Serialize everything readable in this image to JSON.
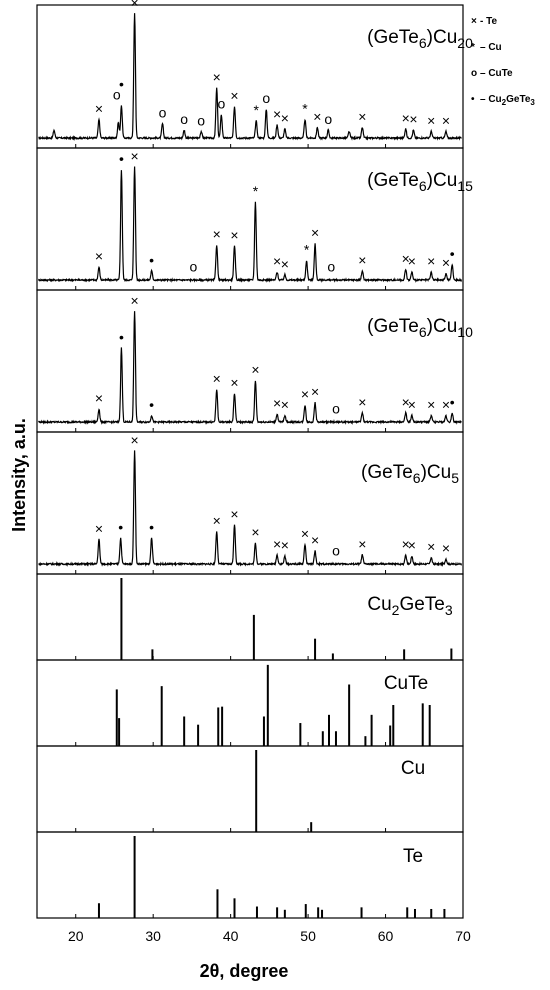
{
  "chart_data": {
    "type": "line",
    "xlabel": "2θ, degree",
    "ylabel": "Intensity, a.u.",
    "xlim": [
      15,
      70
    ],
    "xticks": [
      20,
      30,
      40,
      50,
      60,
      70
    ],
    "legend": {
      "placement": "top-right",
      "entries": [
        {
          "marker": "×",
          "label": "- Te"
        },
        {
          "marker": "*",
          "label": "– Cu"
        },
        {
          "marker": "o",
          "label": "– CuTe"
        },
        {
          "marker": "•",
          "label": "– Cu",
          "sub": "2",
          "label2": "GeTe",
          "sub2": "3"
        }
      ]
    },
    "xrd_panels": [
      {
        "label_main": "(GeTe",
        "label_sub1": "6",
        "label_mid": ")Cu",
        "label_sub2": "20",
        "peaks": [
          {
            "x": 17.2,
            "h": 0.06
          },
          {
            "x": 23.0,
            "h": 0.14
          },
          {
            "x": 25.5,
            "h": 0.12
          },
          {
            "x": 25.9,
            "h": 0.25
          },
          {
            "x": 27.6,
            "h": 0.95
          },
          {
            "x": 31.2,
            "h": 0.11
          },
          {
            "x": 34.0,
            "h": 0.06
          },
          {
            "x": 36.2,
            "h": 0.05
          },
          {
            "x": 38.2,
            "h": 0.38
          },
          {
            "x": 38.8,
            "h": 0.18
          },
          {
            "x": 40.5,
            "h": 0.24
          },
          {
            "x": 43.3,
            "h": 0.13
          },
          {
            "x": 44.6,
            "h": 0.22
          },
          {
            "x": 46.0,
            "h": 0.1
          },
          {
            "x": 47.0,
            "h": 0.07
          },
          {
            "x": 49.6,
            "h": 0.14
          },
          {
            "x": 51.2,
            "h": 0.08
          },
          {
            "x": 52.6,
            "h": 0.06
          },
          {
            "x": 55.3,
            "h": 0.05
          },
          {
            "x": 57.0,
            "h": 0.08
          },
          {
            "x": 62.6,
            "h": 0.07
          },
          {
            "x": 63.6,
            "h": 0.06
          },
          {
            "x": 65.9,
            "h": 0.05
          },
          {
            "x": 67.8,
            "h": 0.05
          }
        ],
        "markers": [
          {
            "x": 23.0,
            "h": 0.14,
            "m": "×"
          },
          {
            "x": 25.3,
            "h": 0.25,
            "m": "o"
          },
          {
            "x": 25.9,
            "h": 0.33,
            "m": "•"
          },
          {
            "x": 27.6,
            "h": 0.95,
            "m": "×"
          },
          {
            "x": 31.2,
            "h": 0.11,
            "m": "o"
          },
          {
            "x": 34.0,
            "h": 0.06,
            "m": "o"
          },
          {
            "x": 36.2,
            "h": 0.05,
            "m": "o"
          },
          {
            "x": 38.2,
            "h": 0.38,
            "m": "×"
          },
          {
            "x": 38.8,
            "h": 0.18,
            "m": "o"
          },
          {
            "x": 40.5,
            "h": 0.24,
            "m": "×"
          },
          {
            "x": 43.3,
            "h": 0.13,
            "m": "*"
          },
          {
            "x": 44.6,
            "h": 0.22,
            "m": "o"
          },
          {
            "x": 46.0,
            "h": 0.1,
            "m": "×"
          },
          {
            "x": 47.0,
            "h": 0.07,
            "m": "×"
          },
          {
            "x": 49.6,
            "h": 0.14,
            "m": "*"
          },
          {
            "x": 51.2,
            "h": 0.08,
            "m": "×"
          },
          {
            "x": 52.6,
            "h": 0.06,
            "m": "o"
          },
          {
            "x": 57.0,
            "h": 0.08,
            "m": "×"
          },
          {
            "x": 62.6,
            "h": 0.07,
            "m": "×"
          },
          {
            "x": 63.6,
            "h": 0.06,
            "m": "×"
          },
          {
            "x": 65.9,
            "h": 0.05,
            "m": "×"
          },
          {
            "x": 67.8,
            "h": 0.05,
            "m": "×"
          }
        ]
      },
      {
        "label_main": "(GeTe",
        "label_sub1": "6",
        "label_mid": ")Cu",
        "label_sub2": "15",
        "peaks": [
          {
            "x": 23.0,
            "h": 0.1
          },
          {
            "x": 25.9,
            "h": 0.85
          },
          {
            "x": 27.6,
            "h": 0.87
          },
          {
            "x": 29.8,
            "h": 0.07
          },
          {
            "x": 38.2,
            "h": 0.27
          },
          {
            "x": 40.5,
            "h": 0.26
          },
          {
            "x": 43.2,
            "h": 0.6
          },
          {
            "x": 46.0,
            "h": 0.06
          },
          {
            "x": 47.0,
            "h": 0.04
          },
          {
            "x": 49.8,
            "h": 0.15
          },
          {
            "x": 50.9,
            "h": 0.28
          },
          {
            "x": 57.0,
            "h": 0.07
          },
          {
            "x": 62.6,
            "h": 0.08
          },
          {
            "x": 63.4,
            "h": 0.06
          },
          {
            "x": 65.9,
            "h": 0.06
          },
          {
            "x": 67.8,
            "h": 0.05
          },
          {
            "x": 68.6,
            "h": 0.12
          }
        ],
        "markers": [
          {
            "x": 23.0,
            "h": 0.1,
            "m": "×"
          },
          {
            "x": 25.9,
            "h": 0.85,
            "m": "•"
          },
          {
            "x": 27.6,
            "h": 0.87,
            "m": "×"
          },
          {
            "x": 29.8,
            "h": 0.07,
            "m": "•"
          },
          {
            "x": 35.2,
            "h": 0.02,
            "m": "o"
          },
          {
            "x": 38.2,
            "h": 0.27,
            "m": "×"
          },
          {
            "x": 40.5,
            "h": 0.26,
            "m": "×"
          },
          {
            "x": 43.2,
            "h": 0.6,
            "m": "*"
          },
          {
            "x": 46.0,
            "h": 0.06,
            "m": "×"
          },
          {
            "x": 47.0,
            "h": 0.04,
            "m": "×"
          },
          {
            "x": 49.8,
            "h": 0.15,
            "m": "*"
          },
          {
            "x": 50.9,
            "h": 0.28,
            "m": "×"
          },
          {
            "x": 53.0,
            "h": 0.02,
            "m": "o"
          },
          {
            "x": 57.0,
            "h": 0.07,
            "m": "×"
          },
          {
            "x": 62.6,
            "h": 0.08,
            "m": "×"
          },
          {
            "x": 63.4,
            "h": 0.06,
            "m": "×"
          },
          {
            "x": 65.9,
            "h": 0.06,
            "m": "×"
          },
          {
            "x": 67.8,
            "h": 0.05,
            "m": "×"
          },
          {
            "x": 68.6,
            "h": 0.12,
            "m": "•"
          }
        ]
      },
      {
        "label_main": "(GeTe",
        "label_sub1": "6",
        "label_mid": ")Cu",
        "label_sub2": "10",
        "peaks": [
          {
            "x": 23.0,
            "h": 0.1
          },
          {
            "x": 25.9,
            "h": 0.57
          },
          {
            "x": 27.6,
            "h": 0.85
          },
          {
            "x": 29.8,
            "h": 0.05
          },
          {
            "x": 38.2,
            "h": 0.25
          },
          {
            "x": 40.5,
            "h": 0.22
          },
          {
            "x": 43.2,
            "h": 0.32
          },
          {
            "x": 46.0,
            "h": 0.06
          },
          {
            "x": 47.0,
            "h": 0.05
          },
          {
            "x": 49.6,
            "h": 0.13
          },
          {
            "x": 50.9,
            "h": 0.15
          },
          {
            "x": 57.0,
            "h": 0.07
          },
          {
            "x": 62.6,
            "h": 0.07
          },
          {
            "x": 63.4,
            "h": 0.05
          },
          {
            "x": 65.9,
            "h": 0.05
          },
          {
            "x": 67.8,
            "h": 0.05
          },
          {
            "x": 68.6,
            "h": 0.07
          }
        ],
        "markers": [
          {
            "x": 23.0,
            "h": 0.1,
            "m": "×"
          },
          {
            "x": 25.9,
            "h": 0.57,
            "m": "•"
          },
          {
            "x": 27.6,
            "h": 0.85,
            "m": "×"
          },
          {
            "x": 29.8,
            "h": 0.05,
            "m": "•"
          },
          {
            "x": 38.2,
            "h": 0.25,
            "m": "×"
          },
          {
            "x": 40.5,
            "h": 0.22,
            "m": "×"
          },
          {
            "x": 43.2,
            "h": 0.32,
            "m": "×"
          },
          {
            "x": 46.0,
            "h": 0.06,
            "m": "×"
          },
          {
            "x": 47.0,
            "h": 0.05,
            "m": "×"
          },
          {
            "x": 49.6,
            "h": 0.13,
            "m": "×"
          },
          {
            "x": 50.9,
            "h": 0.15,
            "m": "×"
          },
          {
            "x": 53.6,
            "h": 0.02,
            "m": "o"
          },
          {
            "x": 57.0,
            "h": 0.07,
            "m": "×"
          },
          {
            "x": 62.6,
            "h": 0.07,
            "m": "×"
          },
          {
            "x": 63.4,
            "h": 0.05,
            "m": "×"
          },
          {
            "x": 65.9,
            "h": 0.05,
            "m": "×"
          },
          {
            "x": 67.8,
            "h": 0.05,
            "m": "×"
          },
          {
            "x": 68.6,
            "h": 0.07,
            "m": "•"
          }
        ]
      },
      {
        "label_main": "(GeTe",
        "label_sub1": "6",
        "label_mid": ")Cu",
        "label_sub2": "5",
        "peaks": [
          {
            "x": 23.0,
            "h": 0.19
          },
          {
            "x": 25.8,
            "h": 0.2
          },
          {
            "x": 27.6,
            "h": 0.87
          },
          {
            "x": 29.8,
            "h": 0.2
          },
          {
            "x": 38.2,
            "h": 0.25
          },
          {
            "x": 40.5,
            "h": 0.3
          },
          {
            "x": 43.2,
            "h": 0.16
          },
          {
            "x": 46.0,
            "h": 0.07
          },
          {
            "x": 47.0,
            "h": 0.06
          },
          {
            "x": 49.6,
            "h": 0.15
          },
          {
            "x": 50.9,
            "h": 0.1
          },
          {
            "x": 57.0,
            "h": 0.07
          },
          {
            "x": 62.6,
            "h": 0.07
          },
          {
            "x": 63.4,
            "h": 0.06
          },
          {
            "x": 65.9,
            "h": 0.05
          },
          {
            "x": 67.8,
            "h": 0.04
          }
        ],
        "markers": [
          {
            "x": 23.0,
            "h": 0.19,
            "m": "×"
          },
          {
            "x": 25.8,
            "h": 0.2,
            "m": "•"
          },
          {
            "x": 27.6,
            "h": 0.87,
            "m": "×"
          },
          {
            "x": 29.8,
            "h": 0.2,
            "m": "•"
          },
          {
            "x": 38.2,
            "h": 0.25,
            "m": "×"
          },
          {
            "x": 40.5,
            "h": 0.3,
            "m": "×"
          },
          {
            "x": 43.2,
            "h": 0.16,
            "m": "×"
          },
          {
            "x": 46.0,
            "h": 0.07,
            "m": "×"
          },
          {
            "x": 47.0,
            "h": 0.06,
            "m": "×"
          },
          {
            "x": 49.6,
            "h": 0.15,
            "m": "×"
          },
          {
            "x": 50.9,
            "h": 0.1,
            "m": "×"
          },
          {
            "x": 53.6,
            "h": 0.02,
            "m": "o"
          },
          {
            "x": 57.0,
            "h": 0.07,
            "m": "×"
          },
          {
            "x": 62.6,
            "h": 0.07,
            "m": "×"
          },
          {
            "x": 63.4,
            "h": 0.06,
            "m": "×"
          },
          {
            "x": 65.9,
            "h": 0.05,
            "m": "×"
          },
          {
            "x": 67.8,
            "h": 0.04,
            "m": "×"
          }
        ]
      }
    ],
    "reference_panels": [
      {
        "label_parts": [
          {
            "t": "Cu"
          },
          {
            "t": "2",
            "sub": true
          },
          {
            "t": "GeTe"
          },
          {
            "t": "3",
            "sub": true
          }
        ],
        "lines": [
          {
            "x": 25.9,
            "h": 1.0
          },
          {
            "x": 29.9,
            "h": 0.13
          },
          {
            "x": 43.0,
            "h": 0.55
          },
          {
            "x": 50.9,
            "h": 0.26
          },
          {
            "x": 53.2,
            "h": 0.08
          },
          {
            "x": 62.4,
            "h": 0.13
          },
          {
            "x": 68.5,
            "h": 0.14
          }
        ]
      },
      {
        "label_parts": [
          {
            "t": "CuTe"
          }
        ],
        "lines": [
          {
            "x": 25.3,
            "h": 0.69
          },
          {
            "x": 25.6,
            "h": 0.34
          },
          {
            "x": 31.1,
            "h": 0.73
          },
          {
            "x": 34.0,
            "h": 0.36
          },
          {
            "x": 35.8,
            "h": 0.26
          },
          {
            "x": 38.4,
            "h": 0.47
          },
          {
            "x": 38.9,
            "h": 0.48
          },
          {
            "x": 44.3,
            "h": 0.36
          },
          {
            "x": 44.8,
            "h": 0.99
          },
          {
            "x": 49.0,
            "h": 0.28
          },
          {
            "x": 51.9,
            "h": 0.18
          },
          {
            "x": 52.7,
            "h": 0.38
          },
          {
            "x": 53.6,
            "h": 0.18
          },
          {
            "x": 55.3,
            "h": 0.75
          },
          {
            "x": 57.4,
            "h": 0.12
          },
          {
            "x": 58.2,
            "h": 0.38
          },
          {
            "x": 60.6,
            "h": 0.25
          },
          {
            "x": 61.0,
            "h": 0.5
          },
          {
            "x": 64.8,
            "h": 0.52
          },
          {
            "x": 65.7,
            "h": 0.5
          }
        ]
      },
      {
        "label_parts": [
          {
            "t": "Cu"
          }
        ],
        "lines": [
          {
            "x": 43.3,
            "h": 1.0
          },
          {
            "x": 50.4,
            "h": 0.12
          }
        ]
      },
      {
        "label_parts": [
          {
            "t": "Te"
          }
        ],
        "lines": [
          {
            "x": 23.0,
            "h": 0.18
          },
          {
            "x": 27.6,
            "h": 1.0
          },
          {
            "x": 38.3,
            "h": 0.35
          },
          {
            "x": 40.5,
            "h": 0.24
          },
          {
            "x": 43.4,
            "h": 0.14
          },
          {
            "x": 46.0,
            "h": 0.13
          },
          {
            "x": 47.0,
            "h": 0.1
          },
          {
            "x": 49.7,
            "h": 0.17
          },
          {
            "x": 51.3,
            "h": 0.13
          },
          {
            "x": 51.8,
            "h": 0.1
          },
          {
            "x": 56.9,
            "h": 0.13
          },
          {
            "x": 62.8,
            "h": 0.13
          },
          {
            "x": 63.8,
            "h": 0.11
          },
          {
            "x": 65.9,
            "h": 0.11
          },
          {
            "x": 67.6,
            "h": 0.11
          }
        ]
      }
    ]
  }
}
